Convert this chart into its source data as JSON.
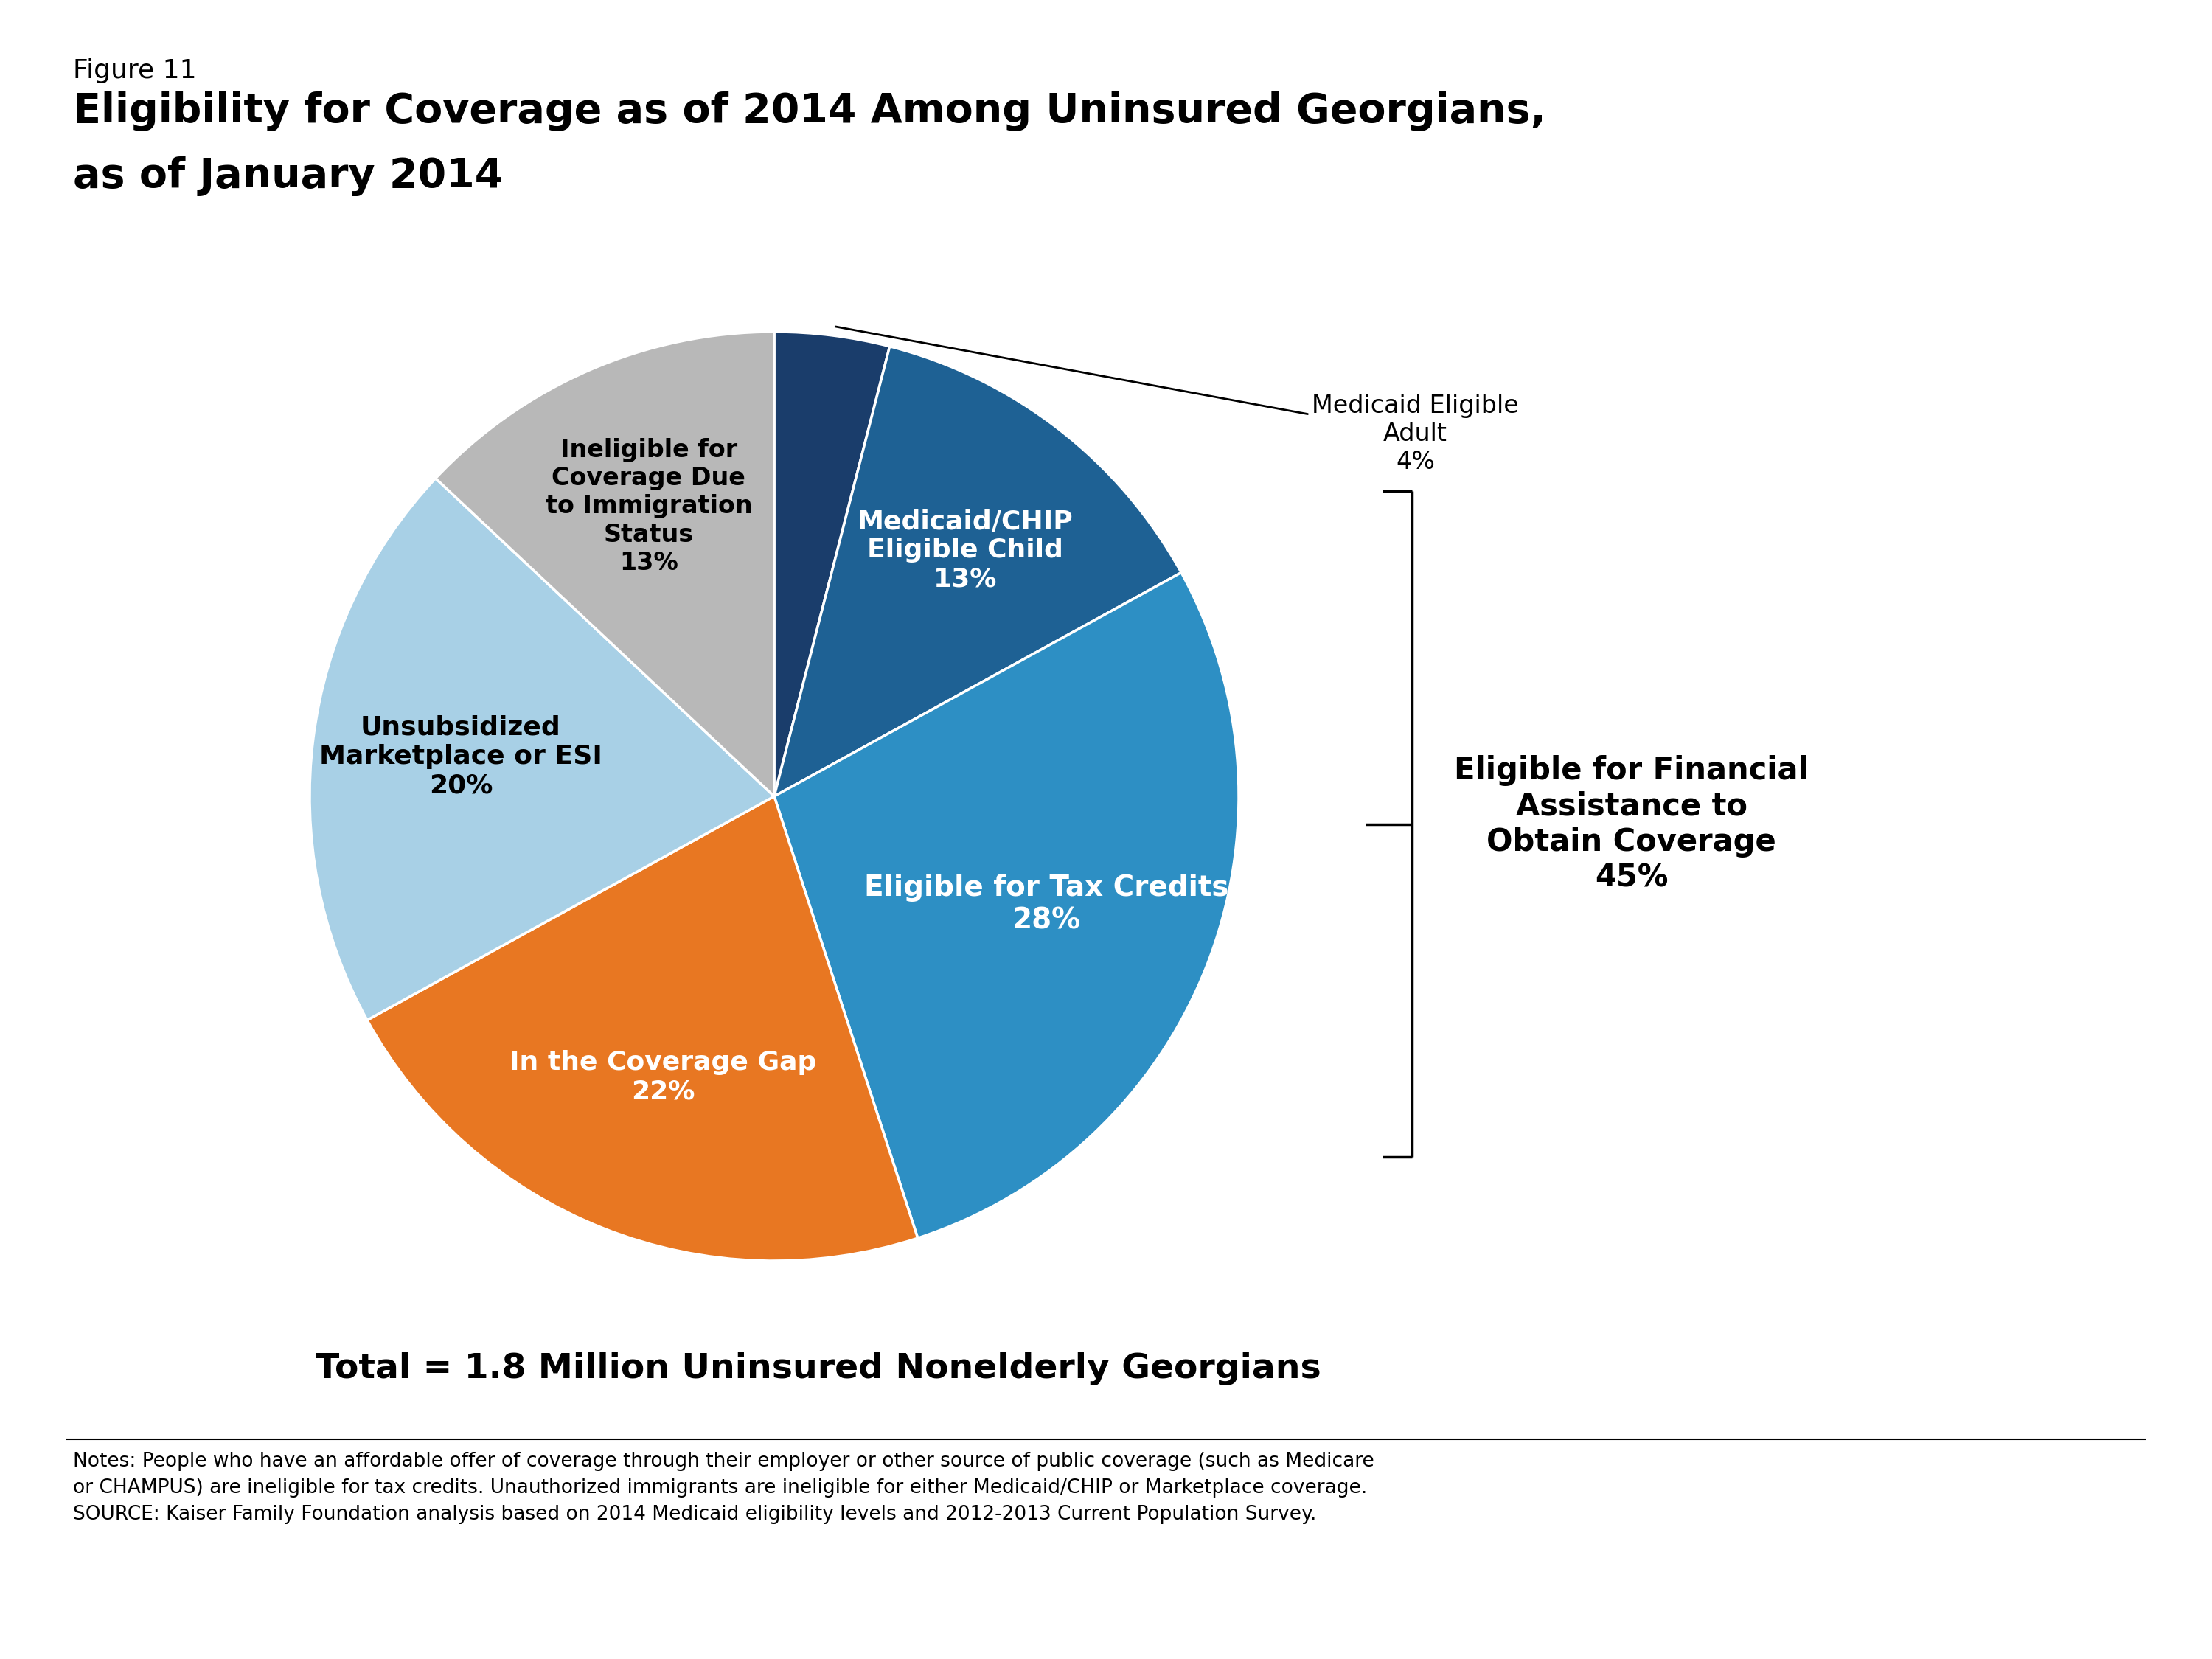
{
  "figure_label": "Figure 11",
  "title_line1": "Eligibility for Coverage as of 2014 Among Uninsured Georgians,",
  "title_line2": "as of January 2014",
  "slices": [
    {
      "label": "Medicaid Eligible\nAdult\n4%",
      "pct": 4,
      "color": "#1a3d6b",
      "text_color": "#000000",
      "inside": false
    },
    {
      "label": "Medicaid/CHIP\nEligible Child\n13%",
      "pct": 13,
      "color": "#1e6194",
      "text_color": "#ffffff",
      "inside": true
    },
    {
      "label": "Eligible for Tax Credits\n28%",
      "pct": 28,
      "color": "#2d8fc4",
      "text_color": "#ffffff",
      "inside": true
    },
    {
      "label": "In the Coverage Gap\n22%",
      "pct": 22,
      "color": "#e87722",
      "text_color": "#ffffff",
      "inside": true
    },
    {
      "label": "Unsubsidized\nMarketplace or ESI\n20%",
      "pct": 20,
      "color": "#a8d0e6",
      "text_color": "#000000",
      "inside": true
    },
    {
      "label": "Ineligible for\nCoverage Due\nto Immigration\nStatus\n13%",
      "pct": 13,
      "color": "#b8b8b8",
      "text_color": "#000000",
      "inside": true
    }
  ],
  "bracket_label": "Eligible for Financial\nAssistance to\nObtain Coverage\n45%",
  "total_label": "Total = 1.8 Million Uninsured Nonelderly Georgians",
  "notes_line1": "Notes: People who have an affordable offer of coverage through their employer or other source of public coverage (such as Medicare",
  "notes_line2": "or CHAMPUS) are ineligible for tax credits. Unauthorized immigrants are ineligible for either Medicaid/CHIP or Marketplace coverage.",
  "notes_line3": "SOURCE: Kaiser Family Foundation analysis based on 2014 Medicaid eligibility levels and 2012-2013 Current Population Survey.",
  "kff_box_color": "#1a3d6b",
  "background_color": "#ffffff"
}
